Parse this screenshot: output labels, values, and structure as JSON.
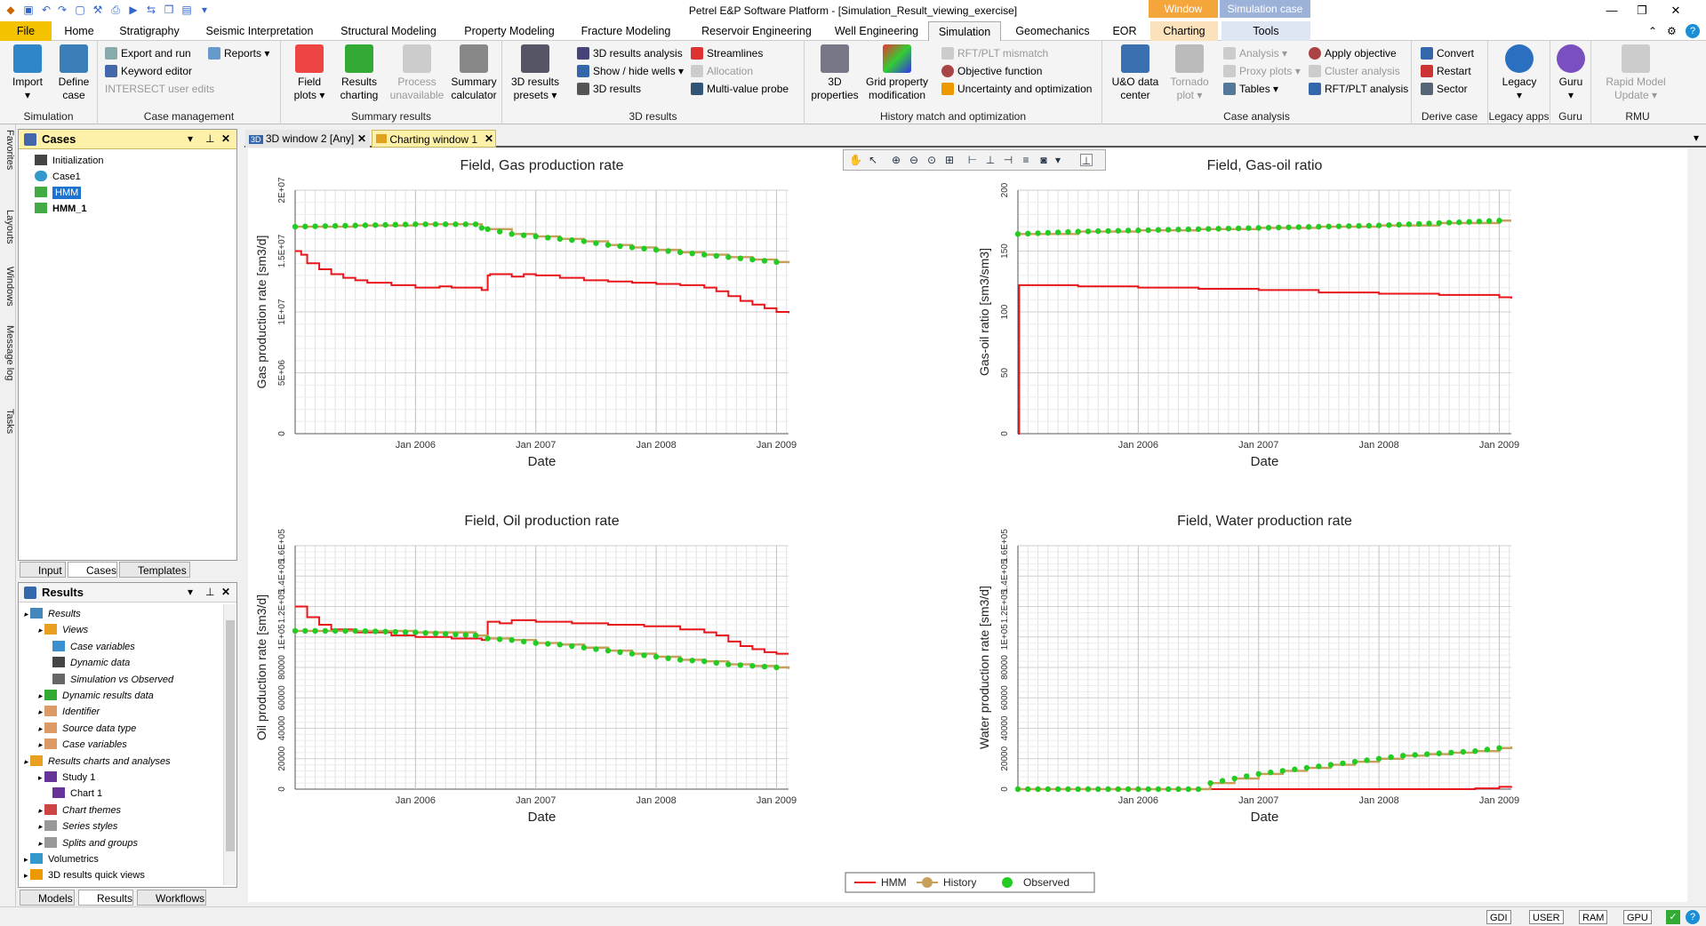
{
  "window": {
    "title": "Petrel E&P Software Platform - [Simulation_Result_viewing_exercise]",
    "context_tabs": [
      {
        "label": "Window",
        "color": "#f4a63a"
      },
      {
        "label": "Simulation case",
        "color": "#9db2d8"
      }
    ]
  },
  "ribbon_tabs": [
    "File",
    "Home",
    "Stratigraphy",
    "Seismic Interpretation",
    "Structural Modeling",
    "Property Modeling",
    "Fracture Modeling",
    "Reservoir Engineering",
    "Well Engineering",
    "Simulation",
    "Geomechanics",
    "EOR",
    "Charting",
    "Tools"
  ],
  "active_tab": "Simulation",
  "ribbon": {
    "groups": {
      "simulation": "Simulation",
      "case_management": "Case management",
      "summary_results": "Summary results",
      "results_3d": "3D results",
      "history_match": "History match and optimization",
      "case_analysis": "Case analysis",
      "derive_case": "Derive case",
      "legacy_apps": "Legacy apps",
      "guru": "Guru",
      "rmu": "RMU"
    },
    "import": "Import",
    "define_case": "Define case",
    "export_run": "Export and run",
    "reports": "Reports",
    "keyword_editor": "Keyword editor",
    "intersect_editor": "INTERSECT user edits",
    "field_plots": "Field plots",
    "results_charting": "Results charting",
    "process_unavailable": "Process unavailable",
    "summary_calculator": "Summary calculator",
    "results_presets": "3D results presets",
    "results_analysis": "3D results analysis",
    "show_hide_wells": "Show / hide wells",
    "results_3d_btn": "3D results",
    "streamlines": "Streamlines",
    "allocation": "Allocation",
    "multi_value_probe": "Multi-value probe",
    "properties_3d": "3D properties",
    "grid_prop_mod": "Grid property modification",
    "rft_mismatch": "RFT/PLT mismatch",
    "objective_function": "Objective function",
    "uncertainty": "Uncertainty and optimization",
    "uo_data": "U&O data center",
    "tornado": "Tornado plot",
    "analysis": "Analysis",
    "proxy_plots": "Proxy plots",
    "tables": "Tables",
    "apply_objective": "Apply objective",
    "cluster_analysis": "Cluster analysis",
    "rft_analysis": "RFT/PLT analysis",
    "convert": "Convert",
    "restart": "Restart",
    "sector": "Sector",
    "legacy": "Legacy",
    "guru": "Guru",
    "rapid_model": "Rapid Model Update"
  },
  "side_tabs": [
    "Favorites",
    "Layouts",
    "Windows",
    "Message log",
    "Tasks"
  ],
  "cases_panel": {
    "title": "Cases",
    "items": [
      "Initialization",
      "Case1",
      "HMM",
      "HMM_1"
    ],
    "selected": "HMM",
    "tabs": [
      "Input",
      "Cases",
      "Templates"
    ]
  },
  "results_panel": {
    "title": "Results",
    "items": [
      {
        "label": "Results",
        "indent": 0,
        "italic": true
      },
      {
        "label": "Views",
        "indent": 1,
        "italic": true
      },
      {
        "label": "Case variables",
        "indent": 2,
        "italic": true
      },
      {
        "label": "Dynamic data",
        "indent": 2,
        "italic": true
      },
      {
        "label": "Simulation vs Observed",
        "indent": 2,
        "italic": true
      },
      {
        "label": "Dynamic results data",
        "indent": 1,
        "italic": true
      },
      {
        "label": "Identifier",
        "indent": 1,
        "italic": true
      },
      {
        "label": "Source data type",
        "indent": 1,
        "italic": true
      },
      {
        "label": "Case variables",
        "indent": 1,
        "italic": true
      },
      {
        "label": "Results charts and analyses",
        "indent": 0,
        "italic": true
      },
      {
        "label": "Study 1",
        "indent": 1,
        "italic": false
      },
      {
        "label": "Chart 1",
        "indent": 2,
        "italic": false
      },
      {
        "label": "Chart themes",
        "indent": 1,
        "italic": true
      },
      {
        "label": "Series styles",
        "indent": 1,
        "italic": true
      },
      {
        "label": "Splits and groups",
        "indent": 1,
        "italic": true
      },
      {
        "label": "Volumetrics",
        "indent": 0,
        "italic": false
      },
      {
        "label": "3D results quick views",
        "indent": 0,
        "italic": false
      }
    ],
    "tabs": [
      "Models",
      "Results",
      "Workflows"
    ]
  },
  "doc_tabs": [
    "3D window 2 [Any]",
    "Charting window 1"
  ],
  "active_doc": "Charting window 1",
  "legend": [
    "HMM",
    "History",
    "Observed"
  ],
  "status": [
    "GDI",
    "USER",
    "RAM",
    "GPU"
  ],
  "chart_data": [
    {
      "type": "line",
      "title": "Field, Gas production rate",
      "xlabel": "Date",
      "ylabel": "Gas production rate [sm3/d]",
      "x_ticks": [
        "Jan 2006",
        "Jan 2007",
        "Jan 2008",
        "Jan 2009"
      ],
      "y_ticks": [
        "0",
        "5E+06",
        "1E+07",
        "1.5E+07",
        "2E+07"
      ],
      "ylim": [
        0,
        20000000
      ],
      "xlim_years": [
        2005.0,
        2009.1
      ],
      "series": [
        {
          "name": "HMM",
          "x": [
            2005.0,
            2005.05,
            2005.1,
            2005.2,
            2005.3,
            2005.4,
            2005.5,
            2005.6,
            2005.8,
            2006.0,
            2006.2,
            2006.3,
            2006.35,
            2006.55,
            2006.6,
            2006.62,
            2006.8,
            2006.9,
            2007.0,
            2007.2,
            2007.4,
            2007.6,
            2007.8,
            2008.0,
            2008.2,
            2008.4,
            2008.5,
            2008.6,
            2008.7,
            2008.8,
            2008.9,
            2009.0,
            2009.1
          ],
          "y": [
            15000000,
            14700000,
            14000000,
            13500000,
            13100000,
            12800000,
            12600000,
            12400000,
            12200000,
            12000000,
            12100000,
            12000000,
            12000000,
            11800000,
            13000000,
            13100000,
            12900000,
            13100000,
            13000000,
            12800000,
            12600000,
            12500000,
            12400000,
            12300000,
            12200000,
            12000000,
            11700000,
            11300000,
            10900000,
            10600000,
            10300000,
            10000000,
            9900000
          ]
        },
        {
          "name": "History",
          "x": [
            2005.0,
            2005.5,
            2006.0,
            2006.5,
            2006.55,
            2006.6,
            2006.8,
            2007.0,
            2007.2,
            2007.4,
            2007.6,
            2007.8,
            2008.0,
            2008.2,
            2008.4,
            2008.6,
            2008.8,
            2009.0,
            2009.1
          ],
          "y": [
            17000000,
            17100000,
            17200000,
            17200000,
            16900000,
            16800000,
            16400000,
            16200000,
            16000000,
            15800000,
            15500000,
            15300000,
            15100000,
            14900000,
            14700000,
            14500000,
            14300000,
            14100000,
            14000000
          ]
        },
        {
          "name": "Observed",
          "x": [
            2005.0,
            2005.5,
            2006.0,
            2006.5,
            2006.55,
            2006.6,
            2006.8,
            2007.0,
            2007.2,
            2007.4,
            2007.6,
            2007.8,
            2008.0,
            2008.2,
            2008.4,
            2008.6,
            2008.8,
            2009.0,
            2009.1
          ],
          "y": [
            17000000,
            17100000,
            17200000,
            17200000,
            16900000,
            16800000,
            16400000,
            16200000,
            16000000,
            15800000,
            15500000,
            15300000,
            15100000,
            14900000,
            14700000,
            14500000,
            14300000,
            14100000,
            14000000
          ]
        }
      ]
    },
    {
      "type": "line",
      "title": "Field, Gas-oil ratio",
      "xlabel": "Date",
      "ylabel": "Gas-oil ratio [sm3/sm3]",
      "x_ticks": [
        "Jan 2006",
        "Jan 2007",
        "Jan 2008",
        "Jan 2009"
      ],
      "y_ticks": [
        "0",
        "50",
        "100",
        "150",
        "200"
      ],
      "ylim": [
        0,
        200
      ],
      "xlim_years": [
        2005.0,
        2009.1
      ],
      "series": [
        {
          "name": "HMM",
          "x": [
            2005.0,
            2005.01,
            2005.1,
            2005.5,
            2006.0,
            2006.5,
            2007.0,
            2007.5,
            2008.0,
            2008.5,
            2009.0,
            2009.1
          ],
          "y": [
            0,
            122,
            122,
            121,
            120,
            119,
            118,
            116,
            115,
            114,
            112,
            111
          ]
        },
        {
          "name": "History",
          "x": [
            2005.0,
            2005.5,
            2006.0,
            2006.5,
            2007.0,
            2007.5,
            2008.0,
            2008.5,
            2009.0,
            2009.1
          ],
          "y": [
            164,
            166,
            167,
            168,
            169,
            170,
            171,
            173,
            175,
            175
          ]
        },
        {
          "name": "Observed",
          "x": [
            2005.0,
            2005.5,
            2006.0,
            2006.5,
            2007.0,
            2007.5,
            2008.0,
            2008.5,
            2009.0,
            2009.1
          ],
          "y": [
            164,
            166,
            167,
            168,
            169,
            170,
            171,
            173,
            175,
            175
          ]
        }
      ]
    },
    {
      "type": "line",
      "title": "Field, Oil production rate",
      "xlabel": "Date",
      "ylabel": "Oil production rate [sm3/d]",
      "x_ticks": [
        "Jan 2006",
        "Jan 2007",
        "Jan 2008",
        "Jan 2009"
      ],
      "y_ticks": [
        "0",
        "20000",
        "40000",
        "60000",
        "80000",
        "1E+05",
        "1.2E+05",
        "1.4E+05",
        "1.6E+05"
      ],
      "ylim": [
        0,
        160000
      ],
      "xlim_years": [
        2005.0,
        2009.1
      ],
      "series": [
        {
          "name": "HMM",
          "x": [
            2005.0,
            2005.05,
            2005.1,
            2005.2,
            2005.3,
            2005.5,
            2005.8,
            2006.0,
            2006.3,
            2006.55,
            2006.6,
            2006.7,
            2006.8,
            2007.0,
            2007.3,
            2007.6,
            2007.9,
            2008.2,
            2008.4,
            2008.5,
            2008.6,
            2008.7,
            2008.8,
            2008.9,
            2009.0,
            2009.1
          ],
          "y": [
            120000,
            120000,
            113000,
            108000,
            105000,
            103000,
            101000,
            100000,
            99000,
            98000,
            110000,
            109000,
            111000,
            110000,
            109000,
            108000,
            107000,
            105000,
            103000,
            101000,
            97000,
            94000,
            92000,
            90000,
            89000,
            89000
          ]
        },
        {
          "name": "History",
          "x": [
            2005.0,
            2005.5,
            2006.0,
            2006.5,
            2006.6,
            2006.8,
            2007.0,
            2007.2,
            2007.4,
            2007.6,
            2007.8,
            2008.0,
            2008.2,
            2008.4,
            2008.6,
            2008.8,
            2009.0,
            2009.1
          ],
          "y": [
            104000,
            104000,
            103000,
            101000,
            99000,
            98000,
            96000,
            95000,
            93000,
            91000,
            89000,
            87000,
            85000,
            84000,
            82000,
            81000,
            80000,
            79000
          ]
        },
        {
          "name": "Observed",
          "x": [
            2005.0,
            2005.5,
            2006.0,
            2006.5,
            2006.6,
            2006.8,
            2007.0,
            2007.2,
            2007.4,
            2007.6,
            2007.8,
            2008.0,
            2008.2,
            2008.4,
            2008.6,
            2008.8,
            2009.0,
            2009.1
          ],
          "y": [
            104000,
            104000,
            103000,
            101000,
            99000,
            98000,
            96000,
            95000,
            93000,
            91000,
            89000,
            87000,
            85000,
            84000,
            82000,
            81000,
            80000,
            79000
          ]
        }
      ]
    },
    {
      "type": "line",
      "title": "Field, Water production rate",
      "xlabel": "Date",
      "ylabel": "Water production rate [sm3/d]",
      "x_ticks": [
        "Jan 2006",
        "Jan 2007",
        "Jan 2008",
        "Jan 2009"
      ],
      "y_ticks": [
        "0",
        "20000",
        "40000",
        "60000",
        "80000",
        "1E+05",
        "1.2E+05",
        "1.4E+05",
        "1.6E+05"
      ],
      "ylim": [
        0,
        160000
      ],
      "xlim_years": [
        2005.0,
        2009.1
      ],
      "series": [
        {
          "name": "HMM",
          "x": [
            2005.0,
            2008.6,
            2008.8,
            2009.0,
            2009.1
          ],
          "y": [
            0,
            0,
            500,
            1500,
            2000
          ]
        },
        {
          "name": "History",
          "x": [
            2005.0,
            2006.5,
            2006.6,
            2006.8,
            2007.0,
            2007.2,
            2007.4,
            2007.6,
            2007.8,
            2008.0,
            2008.2,
            2008.4,
            2008.6,
            2008.8,
            2009.0,
            2009.1
          ],
          "y": [
            0,
            0,
            4000,
            7000,
            10000,
            12000,
            14000,
            16000,
            18000,
            20000,
            22000,
            23000,
            24000,
            25000,
            27000,
            28000
          ]
        },
        {
          "name": "Observed",
          "x": [
            2005.0,
            2006.5,
            2006.6,
            2006.8,
            2007.0,
            2007.2,
            2007.4,
            2007.6,
            2007.8,
            2008.0,
            2008.2,
            2008.4,
            2008.6,
            2008.8,
            2009.0,
            2009.1
          ],
          "y": [
            0,
            0,
            4000,
            7000,
            10000,
            12000,
            14000,
            16000,
            18000,
            20000,
            22000,
            23000,
            24000,
            25000,
            27000,
            28000
          ]
        }
      ]
    }
  ]
}
